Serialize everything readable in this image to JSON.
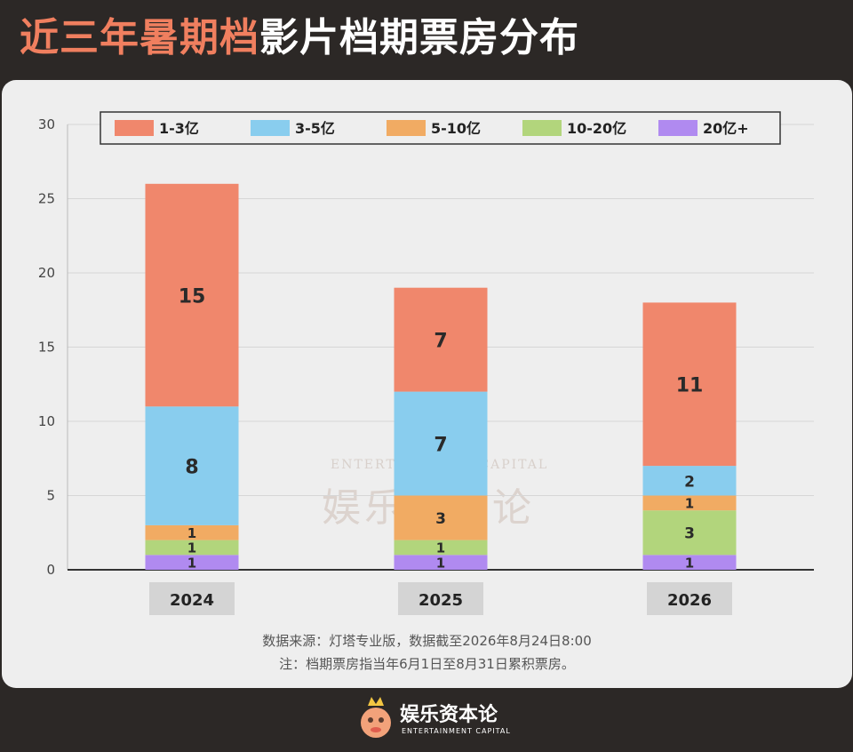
{
  "title": {
    "highlight": "近三年暑期档",
    "rest": "影片档期票房分布"
  },
  "source_lines": [
    "数据来源：灯塔专业版，数据截至2026年8月24日8:00",
    "注：档期票房指当年6月1日至8月31日累积票房。"
  ],
  "watermark": {
    "en": "ENTERTAINMENT CAPITAL",
    "cn": "娱乐资本论"
  },
  "logo": {
    "cn": "娱乐资本论",
    "en": "ENTERTAINMENT CAPITAL"
  },
  "colors": {
    "title_highlight": "#f07f5f",
    "background": "#2c2826",
    "panel": "#eeeeee"
  },
  "chart_data": {
    "type": "bar",
    "stacked": true,
    "categories": [
      "2024",
      "2025",
      "2026"
    ],
    "ylim": [
      0,
      30
    ],
    "yticks": [
      0,
      5,
      10,
      15,
      20,
      25,
      30
    ],
    "grid": true,
    "legend_position": "top",
    "series": [
      {
        "name": "20亿+",
        "values": [
          1,
          1,
          1
        ],
        "color": "#b08af0"
      },
      {
        "name": "10-20亿",
        "values": [
          1,
          1,
          3
        ],
        "color": "#b2d57c"
      },
      {
        "name": "5-10亿",
        "values": [
          1,
          3,
          1
        ],
        "color": "#f1ab63"
      },
      {
        "name": "3-5亿",
        "values": [
          8,
          7,
          2
        ],
        "color": "#89cdee"
      },
      {
        "name": "1-3亿",
        "values": [
          15,
          7,
          11
        ],
        "color": "#f0876c"
      }
    ],
    "legend_order": [
      "1-3亿",
      "3-5亿",
      "5-10亿",
      "10-20亿",
      "20亿+"
    ]
  }
}
